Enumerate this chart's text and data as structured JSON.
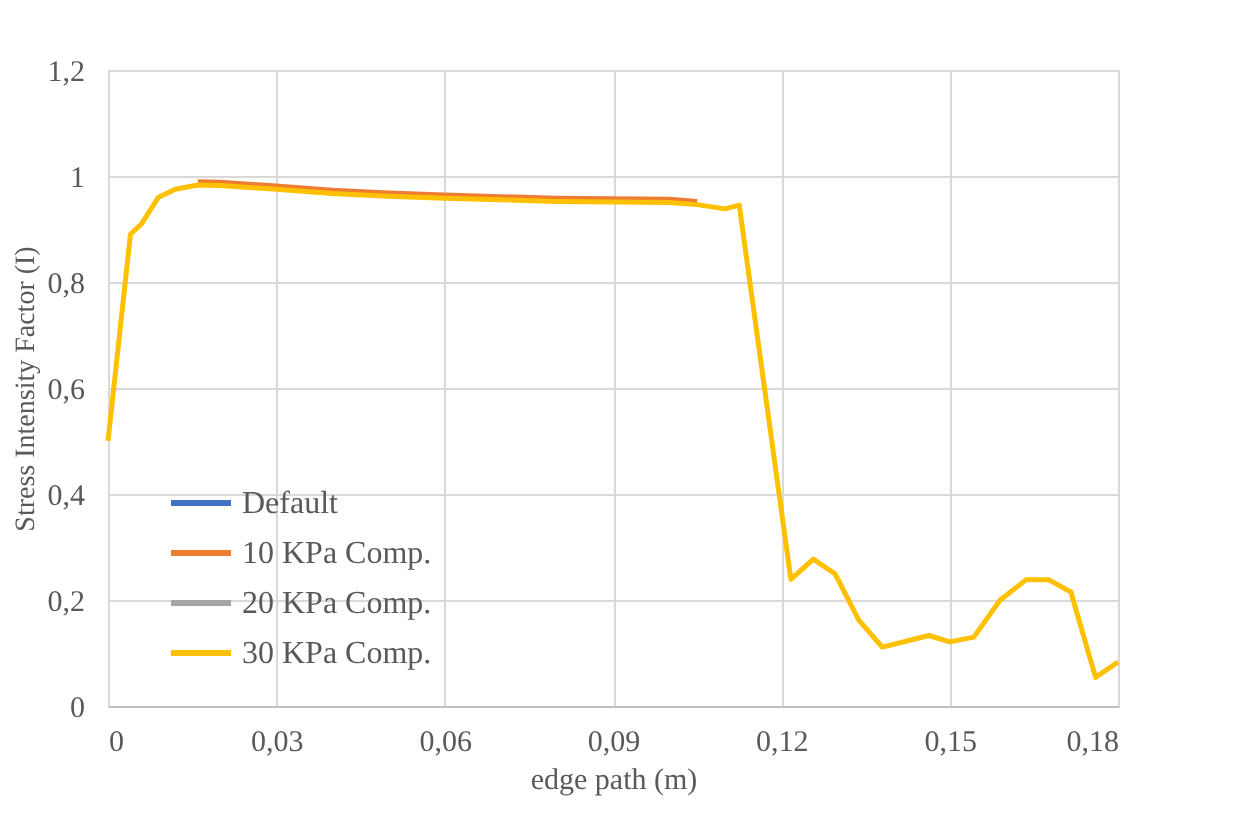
{
  "chart_data": {
    "type": "line",
    "xlabel": "edge path (m)",
    "ylabel": "Stress Intensity  Factor (I)",
    "x": [
      0,
      0.004,
      0.006,
      0.009,
      0.012,
      0.016,
      0.02,
      0.03,
      0.04,
      0.05,
      0.06,
      0.07,
      0.08,
      0.09,
      0.1,
      0.105,
      0.11,
      0.1125,
      0.1217,
      0.1257,
      0.1296,
      0.1338,
      0.138,
      0.1463,
      0.15,
      0.1543,
      0.159,
      0.1636,
      0.1677,
      0.1716,
      0.176,
      0.18
    ],
    "series": [
      {
        "name": "Default",
        "color": "#4472c4",
        "values": [
          null,
          null,
          null,
          null,
          null,
          null,
          null,
          null,
          null,
          null,
          null,
          null,
          null,
          null,
          null,
          null,
          null,
          null,
          null,
          null,
          null,
          null,
          null,
          null,
          null,
          null,
          null,
          null,
          null,
          null,
          null,
          null
        ]
      },
      {
        "name": "10 KPa Comp.",
        "color": "#ed7d31",
        "values": [
          null,
          null,
          null,
          null,
          null,
          0.989,
          0.988,
          0.981,
          0.973,
          0.968,
          0.964,
          0.961,
          0.958,
          0.957,
          0.956,
          0.952,
          null,
          null,
          null,
          null,
          null,
          null,
          null,
          null,
          null,
          null,
          null,
          null,
          null,
          null,
          null,
          null
        ]
      },
      {
        "name": "20 KPa Comp.",
        "color": "#a5a5a5",
        "values": [
          null,
          null,
          null,
          null,
          null,
          null,
          null,
          null,
          null,
          null,
          null,
          null,
          null,
          null,
          null,
          null,
          null,
          null,
          null,
          null,
          null,
          null,
          null,
          null,
          null,
          null,
          null,
          null,
          null,
          null,
          null,
          null
        ]
      },
      {
        "name": "30 KPa Comp.",
        "color": "#ffc000",
        "values": [
          0.5,
          0.89,
          0.91,
          0.96,
          0.975,
          0.983,
          0.982,
          0.975,
          0.967,
          0.962,
          0.958,
          0.955,
          0.952,
          0.951,
          0.95,
          0.946,
          0.938,
          0.945,
          0.239,
          0.277,
          0.249,
          0.162,
          0.111,
          0.133,
          0.121,
          0.13,
          0.2,
          0.238,
          0.238,
          0.215,
          0.054,
          0.083
        ]
      }
    ],
    "xlim": [
      0,
      0.18
    ],
    "xticks": [
      0,
      {
        "value": 0.03,
        "label": "0,03"
      },
      {
        "value": 0.06,
        "label": "0,06"
      },
      {
        "value": 0.09,
        "label": "0,09"
      },
      {
        "value": 0.12,
        "label": "0,12"
      },
      {
        "value": 0.15,
        "label": "0,15"
      },
      {
        "value": 0.18,
        "label": "0,18"
      }
    ],
    "ylim": [
      0,
      1.2
    ],
    "yticks": [
      0,
      {
        "value": 0.2,
        "label": "0,2"
      },
      {
        "value": 0.4,
        "label": "0,4"
      },
      {
        "value": 0.6,
        "label": "0,6"
      },
      {
        "value": 0.8,
        "label": "0,8"
      },
      1,
      {
        "value": 1.2,
        "label": "1,2"
      }
    ],
    "grid": true,
    "legend": "bottom left",
    "marker": "none",
    "line_style": "solid"
  }
}
